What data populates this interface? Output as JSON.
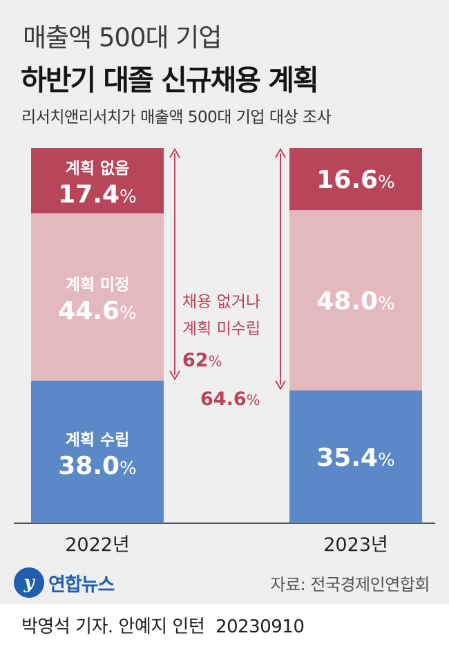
{
  "header": {
    "title_light": "매출액 500대 기업",
    "title_bold": "하반기 대졸 신규채용 계획",
    "subtitle": "리서치앤리서치가 매출액 500대 기업 대상 조사"
  },
  "chart_data": {
    "type": "stacked-bar",
    "title": "하반기 대졸 신규채용 계획",
    "unit": "%",
    "categories": [
      "2022년",
      "2023년"
    ],
    "series": [
      {
        "name": "계획 수립",
        "values": [
          38.0,
          35.4
        ],
        "color": "#5b88c7"
      },
      {
        "name": "계획 미정",
        "values": [
          44.6,
          48.0
        ],
        "color": "#e3b9be"
      },
      {
        "name": "계획 없음",
        "values": [
          17.4,
          16.6
        ],
        "color": "#b84559"
      }
    ],
    "labels_2022": [
      "계획 수립",
      "계획 미정",
      "계획 없음"
    ],
    "value_labels": {
      "2022년": [
        "38.0",
        "44.6",
        "17.4"
      ],
      "2023년": [
        "35.4",
        "48.0",
        "16.6"
      ]
    },
    "annotation": {
      "text_line1": "채용 없거나",
      "text_line2": "계획 미수립",
      "value_2022": "62%",
      "value_2023": "64.6%",
      "color": "#b84559"
    },
    "ylim": [
      0,
      100
    ]
  },
  "footer": {
    "logo_text": "연합뉴스",
    "logo_mark": "y",
    "source": "자료: 전국경제인연합회",
    "byline": "박영석 기자. 안예지 인턴",
    "date": "20230910"
  },
  "colors": {
    "background": "#f0efef",
    "blue": "#5b88c7",
    "pink": "#e3b9be",
    "red": "#b84559",
    "logo": "#1f5fae"
  }
}
